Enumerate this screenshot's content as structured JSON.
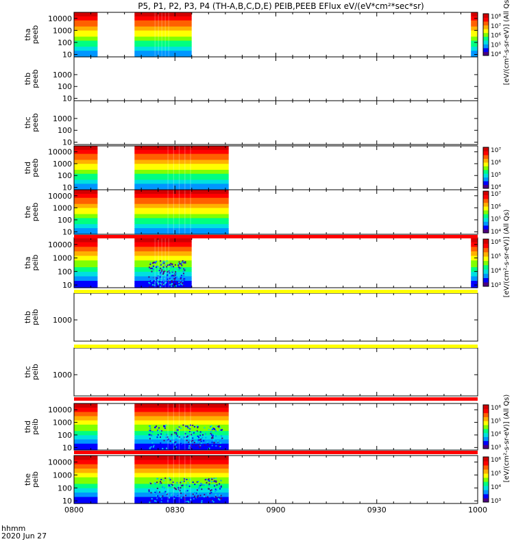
{
  "title": "P5, P1, P2, P3, P4 (TH-A,B,C,D,E) PEIB,PEEB EFlux eV/(eV*cm²*sec*sr)",
  "footer": {
    "unit_label": "hhmm",
    "date_label": "2020 Jun 27"
  },
  "colors": {
    "spectrogram": [
      "#4b0082",
      "#0000ff",
      "#0096ff",
      "#00e0e0",
      "#00ff80",
      "#80ff00",
      "#ffff00",
      "#ffb000",
      "#ff6000",
      "#ff0000",
      "#d00000"
    ],
    "yellow_band": "#ffff00",
    "red_band": "#ff0000",
    "frame": "#000000"
  },
  "chart_data": {
    "type": "heatmap",
    "x_axis": {
      "range": [
        "0800",
        "1000"
      ],
      "ticks": [
        "0800",
        "0830",
        "0900",
        "0930",
        "1000"
      ],
      "label": "hhmm"
    },
    "panels": [
      {
        "probe": "tha",
        "instrument": "peeb",
        "label_lines": [
          "tha",
          "peeb"
        ],
        "y_scale": "log",
        "yticks": [
          "10",
          "100",
          "1000",
          "10000"
        ],
        "data_intervals": [
          [
            "0800",
            "0807"
          ],
          [
            "0818",
            "0835"
          ],
          [
            "0958",
            "1000"
          ]
        ],
        "colorbar": {
          "ticks": [
            "10⁴",
            "10⁵",
            "10⁶",
            "10⁷",
            "10⁸"
          ],
          "label": "[eV/(cm²-s-sr-eV)] (All Qs)"
        }
      },
      {
        "probe": "thb",
        "instrument": "peeb",
        "label_lines": [
          "thb",
          "peeb"
        ],
        "y_scale": "log",
        "yticks": [
          "10",
          "100",
          "1000"
        ],
        "data_intervals": []
      },
      {
        "probe": "thc",
        "instrument": "peeb",
        "label_lines": [
          "thc",
          "peeb"
        ],
        "y_scale": "log",
        "yticks": [
          "10",
          "100",
          "1000"
        ],
        "data_intervals": []
      },
      {
        "probe": "thd",
        "instrument": "peeb",
        "label_lines": [
          "thd",
          "peeb"
        ],
        "y_scale": "log",
        "yticks": [
          "10",
          "100",
          "1000",
          "10000"
        ],
        "data_intervals": [
          [
            "0800",
            "0807"
          ],
          [
            "0818",
            "0846"
          ]
        ],
        "colorbar": {
          "ticks": [
            "10⁴",
            "10⁵",
            "10⁶",
            "10⁷"
          ],
          "label": "[eV/(cm²-s-sr-eV)] (All Qs)"
        }
      },
      {
        "probe": "the",
        "instrument": "peeb",
        "label_lines": [
          "the",
          "peeb"
        ],
        "y_scale": "log",
        "yticks": [
          "10",
          "100",
          "1000",
          "10000"
        ],
        "data_intervals": [
          [
            "0800",
            "0807"
          ],
          [
            "0818",
            "0846"
          ]
        ],
        "colorbar": {
          "ticks": [
            "10⁴",
            "10⁵",
            "10⁶",
            "10⁷"
          ],
          "label": "[eV/(cm²-s-sr-eV)] (All Qs)"
        }
      },
      {
        "probe": "tha",
        "instrument": "peib",
        "label_lines": [
          "tha",
          "peib"
        ],
        "y_scale": "log",
        "yticks": [
          "10",
          "100",
          "1000",
          "10000"
        ],
        "data_intervals": [
          [
            "0800",
            "0807"
          ],
          [
            "0818",
            "0835"
          ],
          [
            "0958",
            "1000"
          ]
        ],
        "colorbar": {
          "ticks": [
            "10³",
            "10⁴",
            "10⁵",
            "10⁶"
          ],
          "label": "[eV/(cm²-s-sr-eV)] (All Qs)"
        }
      },
      {
        "probe": "thb",
        "instrument": "peib",
        "label_lines": [
          "thb",
          "peib"
        ],
        "y_scale": "log",
        "yticks": [
          "1000"
        ],
        "data_intervals": []
      },
      {
        "probe": "thc",
        "instrument": "peib",
        "label_lines": [
          "thc",
          "peib"
        ],
        "y_scale": "log",
        "yticks": [
          "1000"
        ],
        "data_intervals": []
      },
      {
        "probe": "thd",
        "instrument": "peib",
        "label_lines": [
          "thd",
          "peib"
        ],
        "y_scale": "log",
        "yticks": [
          "10",
          "100",
          "1000",
          "10000"
        ],
        "data_intervals": [
          [
            "0800",
            "0807"
          ],
          [
            "0818",
            "0846"
          ]
        ],
        "colorbar": {
          "ticks": [
            "10³",
            "10⁴",
            "10⁵",
            "10⁶"
          ],
          "label": "[eV/(cm²-s-sr-eV)] (All Qs)"
        }
      },
      {
        "probe": "the",
        "instrument": "peib",
        "label_lines": [
          "the",
          "peib"
        ],
        "y_scale": "log",
        "yticks": [
          "10",
          "100",
          "1000",
          "10000"
        ],
        "data_intervals": [
          [
            "0800",
            "0807"
          ],
          [
            "0818",
            "0846"
          ]
        ],
        "colorbar": {
          "ticks": [
            "10³",
            "10⁴",
            "10⁵",
            "10⁶"
          ],
          "label": "[eV/(cm²-s-sr-eV)] (All Qs)"
        }
      }
    ]
  }
}
